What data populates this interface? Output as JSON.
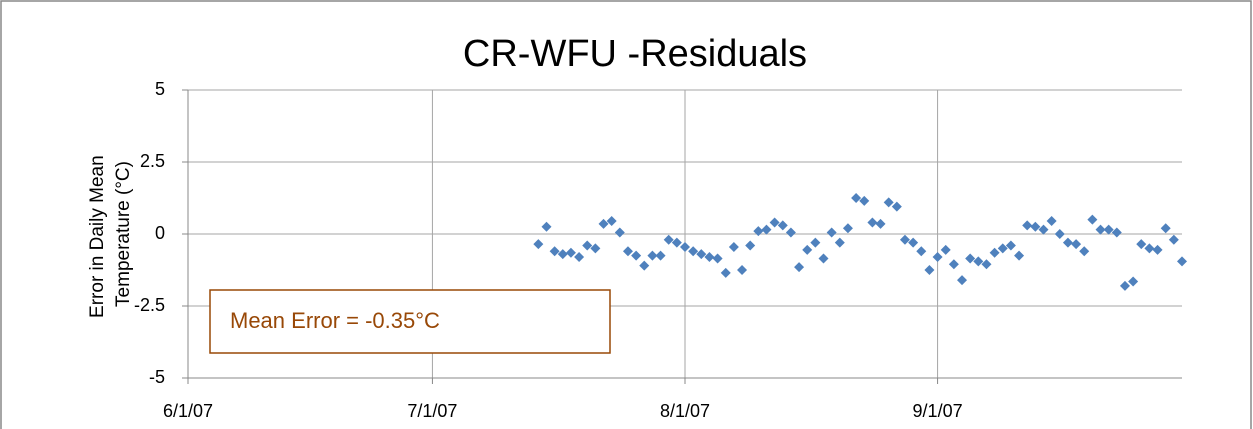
{
  "chart_data": {
    "type": "scatter",
    "title": "CR-WFU -Residuals",
    "y_label": [
      "Error in Daily Mean",
      "Temperature (°C)"
    ],
    "annotation": "Mean Error = -0.35°C",
    "series": [
      {
        "color": "#4f81bd",
        "x": [
          43,
          44,
          45,
          46,
          47,
          48,
          49,
          50,
          51,
          52,
          53,
          54,
          55,
          56,
          57,
          58,
          59,
          60,
          61,
          62,
          63,
          64,
          65,
          66,
          67,
          68,
          69,
          70,
          71,
          72,
          73,
          74,
          75,
          76,
          77,
          78,
          79,
          80,
          81,
          82,
          83,
          84,
          85,
          86,
          87,
          88,
          89,
          90,
          91,
          92,
          93,
          94,
          95,
          96,
          97,
          98,
          99,
          100,
          101,
          102,
          103,
          104,
          105,
          106,
          107,
          108,
          109,
          110,
          111,
          112,
          113,
          114,
          115,
          116,
          117,
          118,
          119,
          120,
          121,
          122
        ],
        "values": [
          -0.35,
          0.25,
          -0.6,
          -0.7,
          -0.65,
          -0.8,
          -0.4,
          -0.5,
          0.35,
          0.45,
          0.05,
          -0.6,
          -0.75,
          -1.1,
          -0.75,
          -0.75,
          -0.2,
          -0.3,
          -0.45,
          -0.6,
          -0.7,
          -0.8,
          -0.85,
          -1.35,
          -0.45,
          -1.25,
          -0.4,
          0.1,
          0.15,
          0.4,
          0.3,
          0.05,
          -1.15,
          -0.55,
          -0.3,
          -0.85,
          0.05,
          -0.3,
          0.2,
          1.25,
          1.15,
          0.4,
          0.35,
          1.1,
          0.95,
          -0.2,
          -0.3,
          -0.6,
          -1.25,
          -0.8,
          -0.55,
          -1.05,
          -1.6,
          -0.85,
          -0.95,
          -1.05,
          -0.65,
          -0.5,
          -0.4,
          -0.75,
          0.3,
          0.25,
          0.15,
          0.45,
          0.0,
          -0.3,
          -0.35,
          -0.6,
          0.5,
          0.15,
          0.15,
          0.05,
          -1.8,
          -1.65,
          -0.35,
          -0.5,
          -0.55,
          0.2,
          -0.2,
          -0.95
        ]
      }
    ],
    "xlim": [
      0,
      122
    ],
    "xticks": [
      {
        "value": 0,
        "label": "6/1/07"
      },
      {
        "value": 30,
        "label": "7/1/07"
      },
      {
        "value": 61,
        "label": "8/1/07"
      },
      {
        "value": 92,
        "label": "9/1/07"
      }
    ],
    "ylim": [
      -5,
      5
    ],
    "yticks": [
      5,
      2.5,
      0,
      -2.5,
      -5
    ],
    "grid": true
  }
}
